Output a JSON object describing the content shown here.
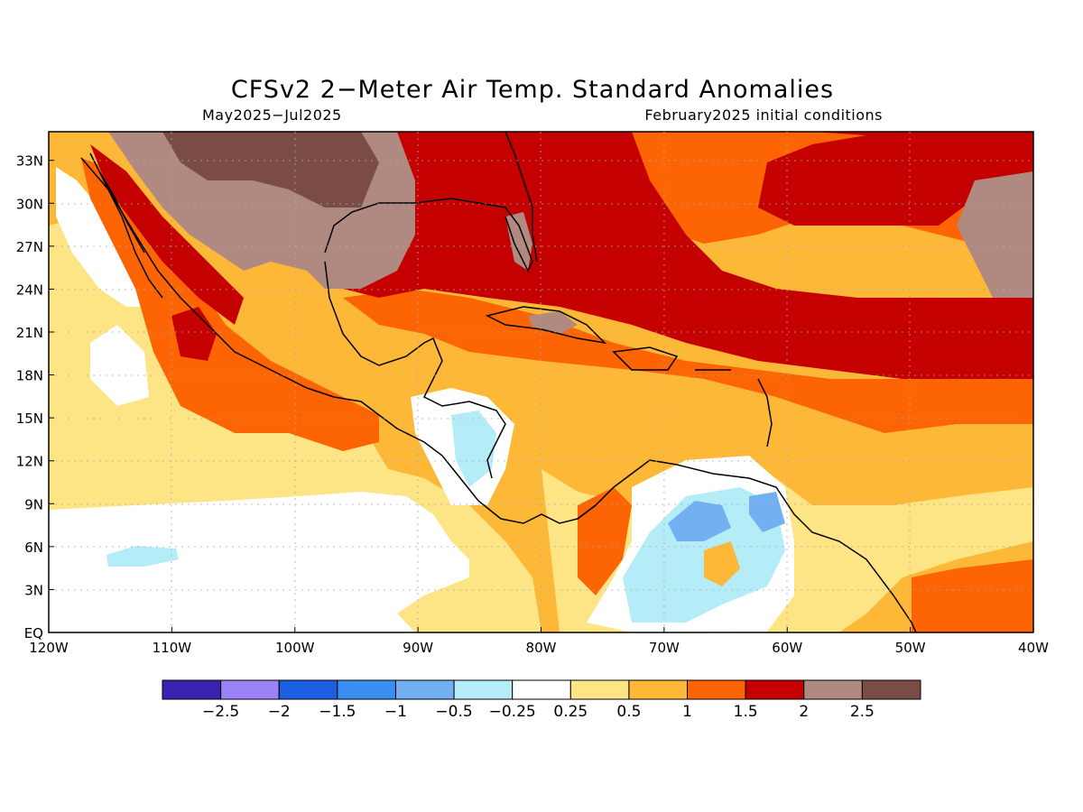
{
  "title": "CFSv2 2−Meter Air Temp. Standard Anomalies",
  "subtitle_left": "May2025−Jul2025",
  "subtitle_right": "February2025 initial conditions",
  "map": {
    "lon_range": [
      -120,
      -40
    ],
    "lat_range": [
      0,
      35
    ],
    "lon_ticks": [
      {
        "v": -120,
        "label": "120W"
      },
      {
        "v": -110,
        "label": "110W"
      },
      {
        "v": -100,
        "label": "100W"
      },
      {
        "v": -90,
        "label": "90W"
      },
      {
        "v": -80,
        "label": "80W"
      },
      {
        "v": -70,
        "label": "70W"
      },
      {
        "v": -60,
        "label": "60W"
      },
      {
        "v": -50,
        "label": "50W"
      },
      {
        "v": -40,
        "label": "40W"
      }
    ],
    "lat_ticks": [
      {
        "v": 0,
        "label": "EQ"
      },
      {
        "v": 3,
        "label": "3N"
      },
      {
        "v": 6,
        "label": "6N"
      },
      {
        "v": 9,
        "label": "9N"
      },
      {
        "v": 12,
        "label": "12N"
      },
      {
        "v": 15,
        "label": "15N"
      },
      {
        "v": 18,
        "label": "18N"
      },
      {
        "v": 21,
        "label": "21N"
      },
      {
        "v": 24,
        "label": "24N"
      },
      {
        "v": 27,
        "label": "27N"
      },
      {
        "v": 30,
        "label": "30N"
      },
      {
        "v": 33,
        "label": "33N"
      }
    ],
    "grid": true
  },
  "colorbar": {
    "colors": [
      "#3a22b0",
      "#9b83f5",
      "#1c5fe0",
      "#3a8ef2",
      "#72b0f2",
      "#b4ecf8",
      "#ffffff",
      "#fde484",
      "#fdb838",
      "#fd6404",
      "#c40000",
      "#b08a80",
      "#7a4c44"
    ],
    "labels": [
      "−2.5",
      "−2",
      "−1.5",
      "−1",
      "−0.5",
      "−0.25",
      "0.25",
      "0.5",
      "1",
      "1.5",
      "2",
      "2.5"
    ]
  }
}
